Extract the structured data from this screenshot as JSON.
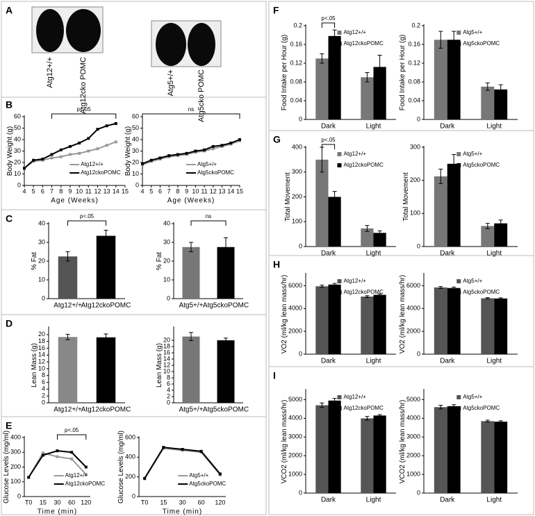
{
  "photos": {
    "panel": "A",
    "labels": [
      "Atg12+/+",
      "Atg12cko POMC",
      "Atg5+/+",
      "Atg5cko POMC"
    ]
  },
  "chart_data": [
    {
      "panel": "B",
      "type": "line",
      "ylabel": "Body Weight (g)",
      "xlabel": "Age (Weeks)",
      "x": [
        4,
        5,
        6,
        7,
        8,
        9,
        10,
        11,
        12,
        13,
        14
      ],
      "xlim": [
        4,
        15
      ],
      "xticks": [
        4,
        5,
        6,
        7,
        8,
        9,
        10,
        11,
        12,
        13,
        14,
        15
      ],
      "ylim": [
        0,
        60
      ],
      "yticks": [
        0,
        10,
        20,
        30,
        40,
        50,
        60
      ],
      "legend": "lower right",
      "series": [
        {
          "name": "Atg12+/+",
          "color": "#999999",
          "values": [
            15,
            21,
            22,
            24,
            25,
            27,
            28,
            30,
            32,
            35,
            38
          ]
        },
        {
          "name": "Atg12ckoPOMC",
          "color": "#000000",
          "values": [
            15,
            22,
            23,
            27,
            31,
            34,
            37,
            41,
            49,
            52,
            54
          ]
        }
      ],
      "annotations": [
        {
          "text": "p<.05",
          "x": [
            7,
            14
          ]
        }
      ]
    },
    {
      "type": "line",
      "ylabel": "Body Weight (g)",
      "xlabel": "Age (Weeks)",
      "x": [
        4,
        5,
        6,
        7,
        8,
        9,
        10,
        11,
        12,
        13,
        14,
        15
      ],
      "xlim": [
        4,
        15
      ],
      "xticks": [
        4,
        5,
        6,
        7,
        8,
        9,
        10,
        11,
        12,
        13,
        14,
        15
      ],
      "ylim": [
        0,
        60
      ],
      "yticks": [
        0,
        10,
        20,
        30,
        40,
        50,
        60
      ],
      "legend": "lower right",
      "series": [
        {
          "name": "Atg5+/+",
          "color": "#999999",
          "values": [
            18,
            21,
            23,
            25,
            26,
            27,
            29,
            30,
            32,
            34,
            36,
            39
          ]
        },
        {
          "name": "Atg5ckoPOMC",
          "color": "#000000",
          "values": [
            19,
            22,
            24,
            26,
            27,
            28,
            30,
            31,
            34,
            35,
            37,
            40
          ]
        }
      ],
      "annotations": [
        {
          "text": "ns",
          "x": [
            4,
            15
          ]
        }
      ]
    },
    {
      "panel": "C",
      "type": "bar",
      "ylabel": "% Fat",
      "categories": [
        "Atg12+/+",
        "Atg12ckoPOMC"
      ],
      "values": [
        22.5,
        33.5
      ],
      "errors": [
        2.5,
        3
      ],
      "colors": [
        "#555555",
        "#000000"
      ],
      "ylim": [
        0,
        40
      ],
      "yticks": [
        0,
        10,
        20,
        30,
        40
      ],
      "annotations": [
        {
          "text": "p<.05"
        }
      ]
    },
    {
      "type": "bar",
      "ylabel": "% Fat",
      "categories": [
        "Atg5+/+",
        "Atg5ckoPOMC"
      ],
      "values": [
        27.5,
        27.5
      ],
      "errors": [
        2.5,
        5
      ],
      "colors": [
        "#777777",
        "#000000"
      ],
      "ylim": [
        0,
        40
      ],
      "yticks": [
        0,
        10,
        20,
        30,
        40
      ],
      "annotations": [
        {
          "text": "ns"
        }
      ]
    },
    {
      "panel": "D",
      "type": "bar",
      "ylabel": "Lean Mass (g)",
      "categories": [
        "Atg12+/+",
        "Atg12ckoPOMC"
      ],
      "values": [
        19.3,
        19.2
      ],
      "errors": [
        0.8,
        1
      ],
      "colors": [
        "#888888",
        "#000000"
      ],
      "ylim": [
        0,
        22
      ],
      "yticks": [
        0,
        2,
        4,
        6,
        8,
        10,
        12,
        14,
        16,
        18,
        20
      ]
    },
    {
      "type": "bar",
      "ylabel": "Lean Mass (g)",
      "categories": [
        "Atg5+/+",
        "Atg5ckoPOMC"
      ],
      "values": [
        21.2,
        20
      ],
      "errors": [
        1.3,
        0.7
      ],
      "colors": [
        "#777777",
        "#000000"
      ],
      "ylim": [
        0,
        24
      ],
      "yticks": [
        0,
        2,
        4,
        6,
        8,
        10,
        12,
        14,
        16,
        18,
        20
      ]
    },
    {
      "panel": "E",
      "type": "line",
      "ylabel": "Glucose Levels (mg/ml)",
      "xlabel": "Time (min)",
      "categories": [
        "T0",
        "15",
        "30",
        "60",
        "120"
      ],
      "ylim": [
        0,
        400
      ],
      "yticks": [
        0,
        100,
        200,
        300,
        400
      ],
      "legend": "lower right",
      "series": [
        {
          "name": "Atg12+/+",
          "color": "#999999",
          "values": [
            130,
            295,
            270,
            255,
            150
          ]
        },
        {
          "name": "Atg12ckoPOMC",
          "color": "#000000",
          "values": [
            130,
            280,
            310,
            300,
            200
          ]
        }
      ],
      "annotations": [
        {
          "text": "p<.05",
          "x": [
            "30",
            "120"
          ]
        }
      ]
    },
    {
      "type": "line",
      "ylabel": "Glucose Levels (mg/ml)",
      "xlabel": "Time (min)",
      "categories": [
        "T0",
        "15",
        "30",
        "60",
        "120"
      ],
      "ylim": [
        0,
        600
      ],
      "yticks": [
        0,
        200,
        400,
        600
      ],
      "legend": "lower right",
      "series": [
        {
          "name": "Atg5+/+",
          "color": "#999999",
          "values": [
            180,
            490,
            470,
            450,
            220
          ]
        },
        {
          "name": "Atg5ckoPOMC",
          "color": "#000000",
          "values": [
            185,
            500,
            480,
            460,
            230
          ]
        }
      ]
    },
    {
      "panel": "F",
      "type": "bar",
      "ylabel": "Food Intake per Hour (g)",
      "categories": [
        "Dark",
        "Light"
      ],
      "ylim": [
        0,
        0.2
      ],
      "yticks": [
        0,
        0.04,
        0.08,
        0.12,
        0.16,
        0.2
      ],
      "series": [
        {
          "name": "Atg12+/+",
          "color": "#777777",
          "values": [
            0.13,
            0.09
          ],
          "errors": [
            0.01,
            0.01
          ]
        },
        {
          "name": "Atg12ckoPOMC",
          "color": "#000000",
          "values": [
            0.178,
            0.112
          ],
          "errors": [
            0.013,
            0.025
          ]
        }
      ],
      "annotations": [
        {
          "text": "p<.05"
        }
      ]
    },
    {
      "type": "bar",
      "ylabel": "Food Intake per Hour (g)",
      "categories": [
        "Dark",
        "Light"
      ],
      "ylim": [
        0,
        0.2
      ],
      "yticks": [
        0,
        0.04,
        0.08,
        0.12,
        0.16,
        0.2
      ],
      "series": [
        {
          "name": "Atg5+/+",
          "color": "#777777",
          "values": [
            0.17,
            0.07
          ],
          "errors": [
            0.018,
            0.008
          ]
        },
        {
          "name": "Atg5ckoPOMC",
          "color": "#000000",
          "values": [
            0.17,
            0.064
          ],
          "errors": [
            0.018,
            0.01
          ]
        }
      ]
    },
    {
      "panel": "G",
      "type": "bar",
      "ylabel": "Total Movement",
      "categories": [
        "Dark",
        "Light"
      ],
      "ylim": [
        0,
        400
      ],
      "yticks": [
        0,
        100,
        200,
        300,
        400
      ],
      "series": [
        {
          "name": "Atg12+/+",
          "color": "#777777",
          "values": [
            350,
            73
          ],
          "errors": [
            50,
            12
          ]
        },
        {
          "name": "Atg12ckoPOMC",
          "color": "#000000",
          "values": [
            200,
            55
          ],
          "errors": [
            22,
            8
          ]
        }
      ],
      "annotations": [
        {
          "text": "p<.05"
        }
      ]
    },
    {
      "type": "bar",
      "ylabel": "Total Movement",
      "categories": [
        "Dark",
        "Light"
      ],
      "ylim": [
        0,
        300
      ],
      "yticks": [
        0,
        100,
        200,
        300
      ],
      "series": [
        {
          "name": "Atg5+/+",
          "color": "#777777",
          "values": [
            212,
            62
          ],
          "errors": [
            22,
            8
          ]
        },
        {
          "name": "Atg5ckoPOMC",
          "color": "#000000",
          "values": [
            250,
            70
          ],
          "errors": [
            28,
            10
          ]
        }
      ]
    },
    {
      "panel": "H",
      "type": "bar",
      "ylabel": "VO2 (ml/kg lean mass/hr)",
      "categories": [
        "Dark",
        "Light"
      ],
      "ylim": [
        0,
        7000
      ],
      "yticks": [
        0,
        2000,
        4000,
        6000
      ],
      "series": [
        {
          "name": "Atg12+/+",
          "color": "#555555",
          "values": [
            5950,
            5050
          ],
          "errors": [
            100,
            80
          ]
        },
        {
          "name": "Atg12ckoPOMC",
          "color": "#000000",
          "values": [
            6100,
            5200
          ],
          "errors": [
            100,
            80
          ]
        }
      ]
    },
    {
      "type": "bar",
      "ylabel": "VO2 (ml/kg lean mass/hr)",
      "categories": [
        "Dark",
        "Light"
      ],
      "ylim": [
        0,
        7000
      ],
      "yticks": [
        0,
        2000,
        4000,
        6000
      ],
      "series": [
        {
          "name": "Atg5+/+",
          "color": "#555555",
          "values": [
            5850,
            4900
          ],
          "errors": [
            80,
            50
          ]
        },
        {
          "name": "Atg5ckoPOMC",
          "color": "#000000",
          "values": [
            5800,
            4880
          ],
          "errors": [
            80,
            60
          ]
        }
      ]
    },
    {
      "panel": "I",
      "type": "bar",
      "ylabel": "VCO2 (ml/kg lean mass/hr)",
      "categories": [
        "Dark",
        "Light"
      ],
      "ylim": [
        0,
        5500
      ],
      "yticks": [
        0,
        1000,
        2000,
        3000,
        4000,
        5000
      ],
      "series": [
        {
          "name": "Atg12+/+",
          "color": "#555555",
          "values": [
            4700,
            4000
          ],
          "errors": [
            120,
            100
          ]
        },
        {
          "name": "Atg12ckoPOMC",
          "color": "#000000",
          "values": [
            4950,
            4150
          ],
          "errors": [
            120,
            50
          ]
        }
      ]
    },
    {
      "type": "bar",
      "ylabel": "VCO2 (ml/kg lean mass/hr)",
      "categories": [
        "Dark",
        "Light"
      ],
      "ylim": [
        0,
        5500
      ],
      "yticks": [
        0,
        1000,
        2000,
        3000,
        4000,
        5000
      ],
      "series": [
        {
          "name": "Atg5+/+",
          "color": "#555555",
          "values": [
            4600,
            3850
          ],
          "errors": [
            100,
            50
          ]
        },
        {
          "name": "Atg5ckoPOMC",
          "color": "#000000",
          "values": [
            4650,
            3820
          ],
          "errors": [
            80,
            50
          ]
        }
      ]
    }
  ]
}
